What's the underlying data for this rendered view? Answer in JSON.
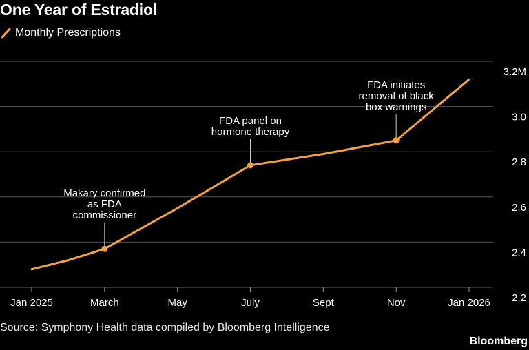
{
  "chart_data": {
    "type": "line",
    "title": "One Year of Estradiol",
    "series": [
      {
        "name": "Monthly Prescriptions",
        "color": "#f6a23a",
        "values": [
          2.28,
          2.32,
          2.37,
          2.46,
          2.55,
          2.645,
          2.74,
          2.765,
          2.79,
          2.82,
          2.85,
          2.985,
          3.12
        ]
      }
    ],
    "x": [
      "Jan 2025",
      "Feb 2025",
      "Mar 2025",
      "Apr 2025",
      "May 2025",
      "Jun 2025",
      "Jul 2025",
      "Aug 2025",
      "Sep 2025",
      "Oct 2025",
      "Nov 2025",
      "Dec 2025",
      "Jan 2026"
    ],
    "x_tick_labels": [
      "Jan 2025",
      "March",
      "May",
      "July",
      "Sept",
      "Nov",
      "Jan 2026"
    ],
    "x_tick_indices": [
      0,
      2,
      4,
      6,
      8,
      10,
      12
    ],
    "y_ticks": [
      2.2,
      2.4,
      2.6,
      2.8,
      3.0,
      3.2
    ],
    "y_tick_labels": [
      "2.2",
      "2.4",
      "2.6",
      "2.8",
      "3.0",
      "3.2M"
    ],
    "ylim": [
      2.2,
      3.2
    ],
    "y_axis_side": "right",
    "grid": "horizontal",
    "legend": "top-left",
    "xlabel": "",
    "ylabel": "",
    "annotations": [
      {
        "index": 2,
        "lines": [
          "Makary confirmed",
          "as FDA",
          "commissioner"
        ]
      },
      {
        "index": 6,
        "lines": [
          "FDA panel on",
          "hormone therapy"
        ]
      },
      {
        "index": 10,
        "lines": [
          "FDA initiates",
          "removal of black",
          "box warnings"
        ]
      }
    ]
  },
  "footer": {
    "source": "Source: Symphony Health data compiled by Bloomberg Intelligence",
    "brand": "Bloomberg"
  },
  "colors": {
    "background": "#000000",
    "line": "#f6a23a",
    "grid": "#555555",
    "text": "#ffffff"
  }
}
